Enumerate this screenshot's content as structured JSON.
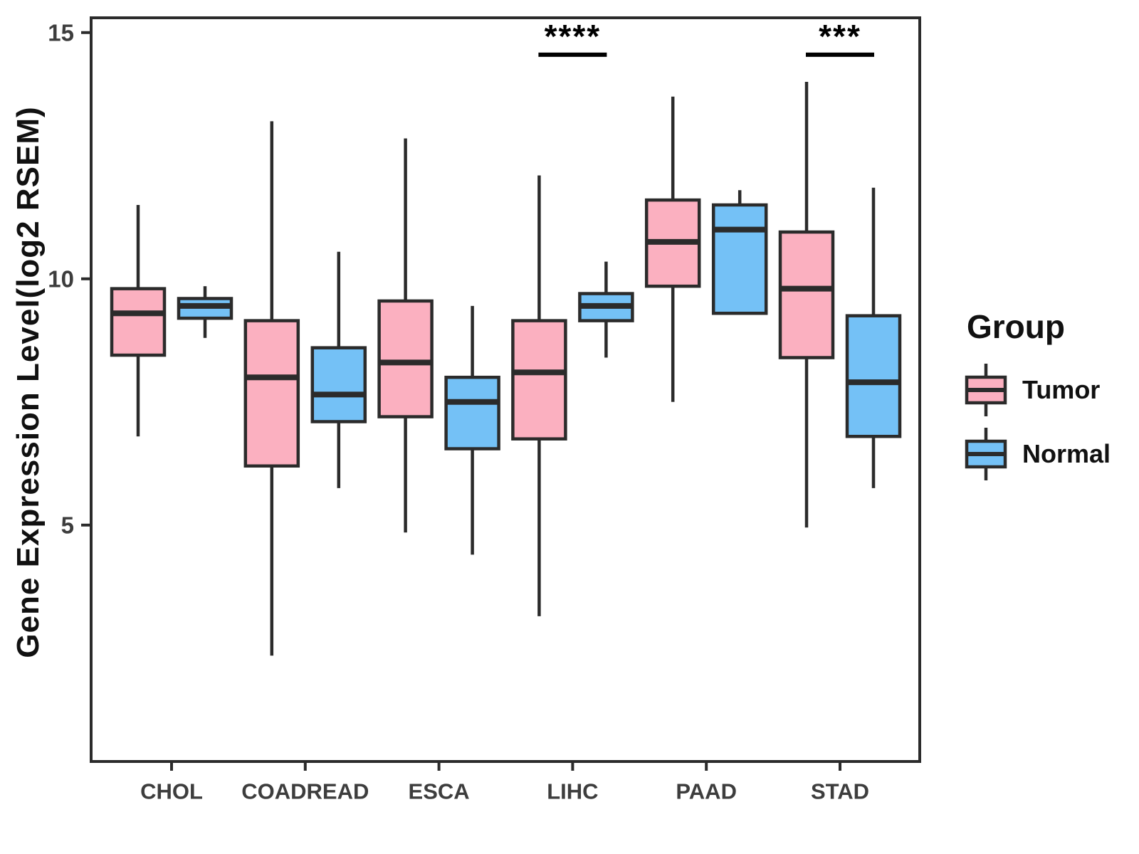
{
  "legend": {
    "title": "Group",
    "items": [
      {
        "label": "Tumor"
      },
      {
        "label": "Normal"
      }
    ]
  },
  "chart_data": {
    "type": "boxplot",
    "title": "",
    "xlabel": "",
    "ylabel": "Gene Expression Level(log2 RSEM)",
    "ylim": [
      0.2,
      15.3
    ],
    "yticks": [
      5,
      10,
      15
    ],
    "grid": false,
    "legend_position": "right",
    "panel_border": true,
    "categories": [
      "CHOL",
      "COADREAD",
      "ESCA",
      "LIHC",
      "PAAD",
      "STAD"
    ],
    "series": [
      {
        "name": "Tumor",
        "fill": "#FBB0C0",
        "boxes": [
          {
            "category": "CHOL",
            "low": 6.8,
            "q1": 8.45,
            "median": 9.3,
            "q3": 9.8,
            "high": 11.5
          },
          {
            "category": "COADREAD",
            "low": 2.35,
            "q1": 6.2,
            "median": 8.0,
            "q3": 9.15,
            "high": 13.2
          },
          {
            "category": "ESCA",
            "low": 4.85,
            "q1": 7.2,
            "median": 8.3,
            "q3": 9.55,
            "high": 12.85
          },
          {
            "category": "LIHC",
            "low": 3.15,
            "q1": 6.75,
            "median": 8.1,
            "q3": 9.15,
            "high": 12.1
          },
          {
            "category": "PAAD",
            "low": 7.5,
            "q1": 9.85,
            "median": 10.75,
            "q3": 11.6,
            "high": 13.7
          },
          {
            "category": "STAD",
            "low": 4.95,
            "q1": 8.4,
            "median": 9.8,
            "q3": 10.95,
            "high": 14.0
          }
        ]
      },
      {
        "name": "Normal",
        "fill": "#74C1F6",
        "boxes": [
          {
            "category": "CHOL",
            "low": 8.8,
            "q1": 9.2,
            "median": 9.45,
            "q3": 9.6,
            "high": 9.85
          },
          {
            "category": "COADREAD",
            "low": 5.75,
            "q1": 7.1,
            "median": 7.65,
            "q3": 8.6,
            "high": 10.55
          },
          {
            "category": "ESCA",
            "low": 4.4,
            "q1": 6.55,
            "median": 7.5,
            "q3": 8.0,
            "high": 9.45
          },
          {
            "category": "LIHC",
            "low": 8.4,
            "q1": 9.15,
            "median": 9.45,
            "q3": 9.7,
            "high": 10.35
          },
          {
            "category": "PAAD",
            "low": 9.3,
            "q1": 9.3,
            "median": 11.0,
            "q3": 11.5,
            "high": 11.8
          },
          {
            "category": "STAD",
            "low": 5.75,
            "q1": 6.8,
            "median": 7.9,
            "q3": 9.25,
            "high": 11.85
          }
        ]
      }
    ],
    "annotations": [
      {
        "category": "LIHC",
        "label": "****",
        "y": 14.55
      },
      {
        "category": "STAD",
        "label": "***",
        "y": 14.55
      }
    ],
    "colors": {
      "stroke": "#2B2B2B",
      "axis_text": "#3D3D3D",
      "annotation": "#000000"
    }
  }
}
